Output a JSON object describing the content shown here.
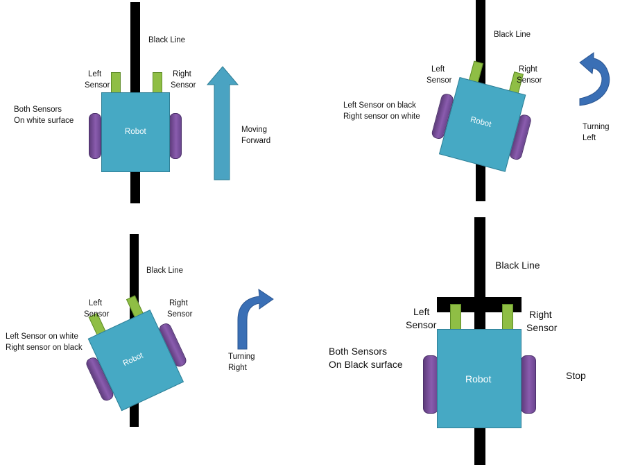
{
  "colors": {
    "robot_body": "#46a9c4",
    "sensor": "#8fbe45",
    "wheel": "#7b529f",
    "arrow": "#4aa3c2",
    "turn_arrow": "#3a6fb5",
    "line": "#000000"
  },
  "icons": [
    "up-arrow-icon",
    "curved-left-arrow-icon",
    "curved-right-arrow-icon"
  ],
  "panels": {
    "forward": {
      "line_label": "Black Line",
      "left_sensor": [
        "Left",
        "Sensor"
      ],
      "right_sensor": [
        "Right",
        "Sensor"
      ],
      "state": [
        "Both Sensors",
        "On white surface"
      ],
      "robot": "Robot",
      "action": [
        "Moving",
        "Forward"
      ]
    },
    "left": {
      "line_label": "Black Line",
      "left_sensor": [
        "Left",
        "Sensor"
      ],
      "right_sensor": [
        "Right",
        "Sensor"
      ],
      "state": [
        "Left Sensor on black",
        "Right sensor on white"
      ],
      "robot": "Robot",
      "action": [
        "Turning",
        "Left"
      ]
    },
    "right": {
      "line_label": "Black Line",
      "left_sensor": [
        "Left",
        "Sensor"
      ],
      "right_sensor": [
        "Right",
        "Sensor"
      ],
      "state": [
        "Left Sensor on white",
        "Right sensor on black"
      ],
      "robot": "Robot",
      "action": [
        "Turning",
        "Right"
      ]
    },
    "stop": {
      "line_label": "Black Line",
      "left_sensor": [
        "Left",
        "Sensor"
      ],
      "right_sensor": [
        "Right",
        "Sensor"
      ],
      "state": [
        "Both Sensors",
        "On Black surface"
      ],
      "robot": "Robot",
      "action": [
        "Stop"
      ]
    }
  }
}
